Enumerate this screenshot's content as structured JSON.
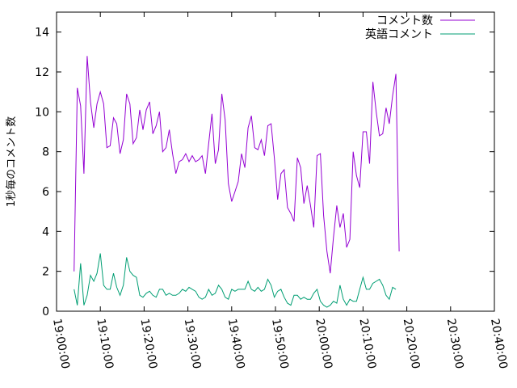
{
  "chart_data": {
    "type": "line",
    "ylabel": "1秒毎のコメント数",
    "xlabel": "",
    "ylim": [
      0,
      15
    ],
    "xlim": [
      "19:00:00",
      "20:40:00"
    ],
    "y_ticks": [
      "0",
      "2",
      "4",
      "6",
      "8",
      "10",
      "12",
      "14"
    ],
    "x_ticks": [
      "19:00:00",
      "19:10:00",
      "19:20:00",
      "19:30:00",
      "19:40:00",
      "19:50:00",
      "20:00:00",
      "20:10:00",
      "20:20:00",
      "20:30:00",
      "20:40:00"
    ],
    "grid": false,
    "legend_position": "top-right",
    "x_start": "19:04:00",
    "x_step": "00:00:45",
    "series": [
      {
        "name": "コメント数",
        "color": "#9400d3",
        "values": [
          2.0,
          11.2,
          10.3,
          6.9,
          12.8,
          10.5,
          9.2,
          10.4,
          11.0,
          10.4,
          8.2,
          8.3,
          9.7,
          9.4,
          7.9,
          8.6,
          10.9,
          10.4,
          8.4,
          8.7,
          10.1,
          9.1,
          10.1,
          10.5,
          8.9,
          9.3,
          10.0,
          8.0,
          8.2,
          9.1,
          7.9,
          6.9,
          7.5,
          7.6,
          7.9,
          7.5,
          7.8,
          7.5,
          7.6,
          7.8,
          6.9,
          8.4,
          9.9,
          7.4,
          8.1,
          10.9,
          9.6,
          6.4,
          5.5,
          6.0,
          6.5,
          7.9,
          7.2,
          9.2,
          9.8,
          8.2,
          8.1,
          8.6,
          7.8,
          9.3,
          9.4,
          7.7,
          5.6,
          6.9,
          7.1,
          5.2,
          4.9,
          4.5,
          7.7,
          7.2,
          5.4,
          6.3,
          5.3,
          4.2,
          7.8,
          7.9,
          4.8,
          3.0,
          1.9,
          3.7,
          5.3,
          4.2,
          4.9,
          3.2,
          3.6,
          8.0,
          6.8,
          6.2,
          9.0,
          9.0,
          7.4,
          11.5,
          10.0,
          8.8,
          8.9,
          10.2,
          9.4,
          10.8,
          11.9,
          3.0
        ]
      },
      {
        "name": "英語コメント",
        "color": "#009e73",
        "values": [
          1.1,
          0.3,
          2.4,
          0.3,
          0.8,
          1.8,
          1.5,
          1.9,
          2.9,
          1.3,
          1.1,
          1.1,
          1.9,
          1.2,
          0.8,
          1.3,
          2.7,
          2.0,
          1.8,
          1.7,
          0.8,
          0.7,
          0.9,
          1.0,
          0.8,
          0.7,
          1.1,
          1.1,
          0.8,
          0.9,
          0.8,
          0.8,
          0.9,
          1.1,
          1.0,
          1.2,
          1.1,
          1.0,
          0.7,
          0.6,
          0.7,
          1.1,
          0.8,
          0.9,
          1.3,
          1.1,
          0.7,
          0.6,
          1.1,
          1.0,
          1.1,
          1.1,
          1.1,
          1.5,
          1.1,
          1.0,
          1.2,
          1.0,
          1.1,
          1.6,
          1.3,
          0.7,
          1.0,
          1.1,
          0.7,
          0.4,
          0.3,
          0.8,
          0.8,
          0.6,
          0.7,
          0.6,
          0.6,
          0.9,
          1.1,
          0.5,
          0.3,
          0.2,
          0.3,
          0.5,
          0.4,
          1.3,
          0.6,
          0.3,
          0.6,
          0.5,
          0.5,
          1.1,
          1.7,
          1.1,
          1.1,
          1.4,
          1.5,
          1.6,
          1.3,
          0.8,
          0.6,
          1.2,
          1.1
        ]
      }
    ]
  }
}
